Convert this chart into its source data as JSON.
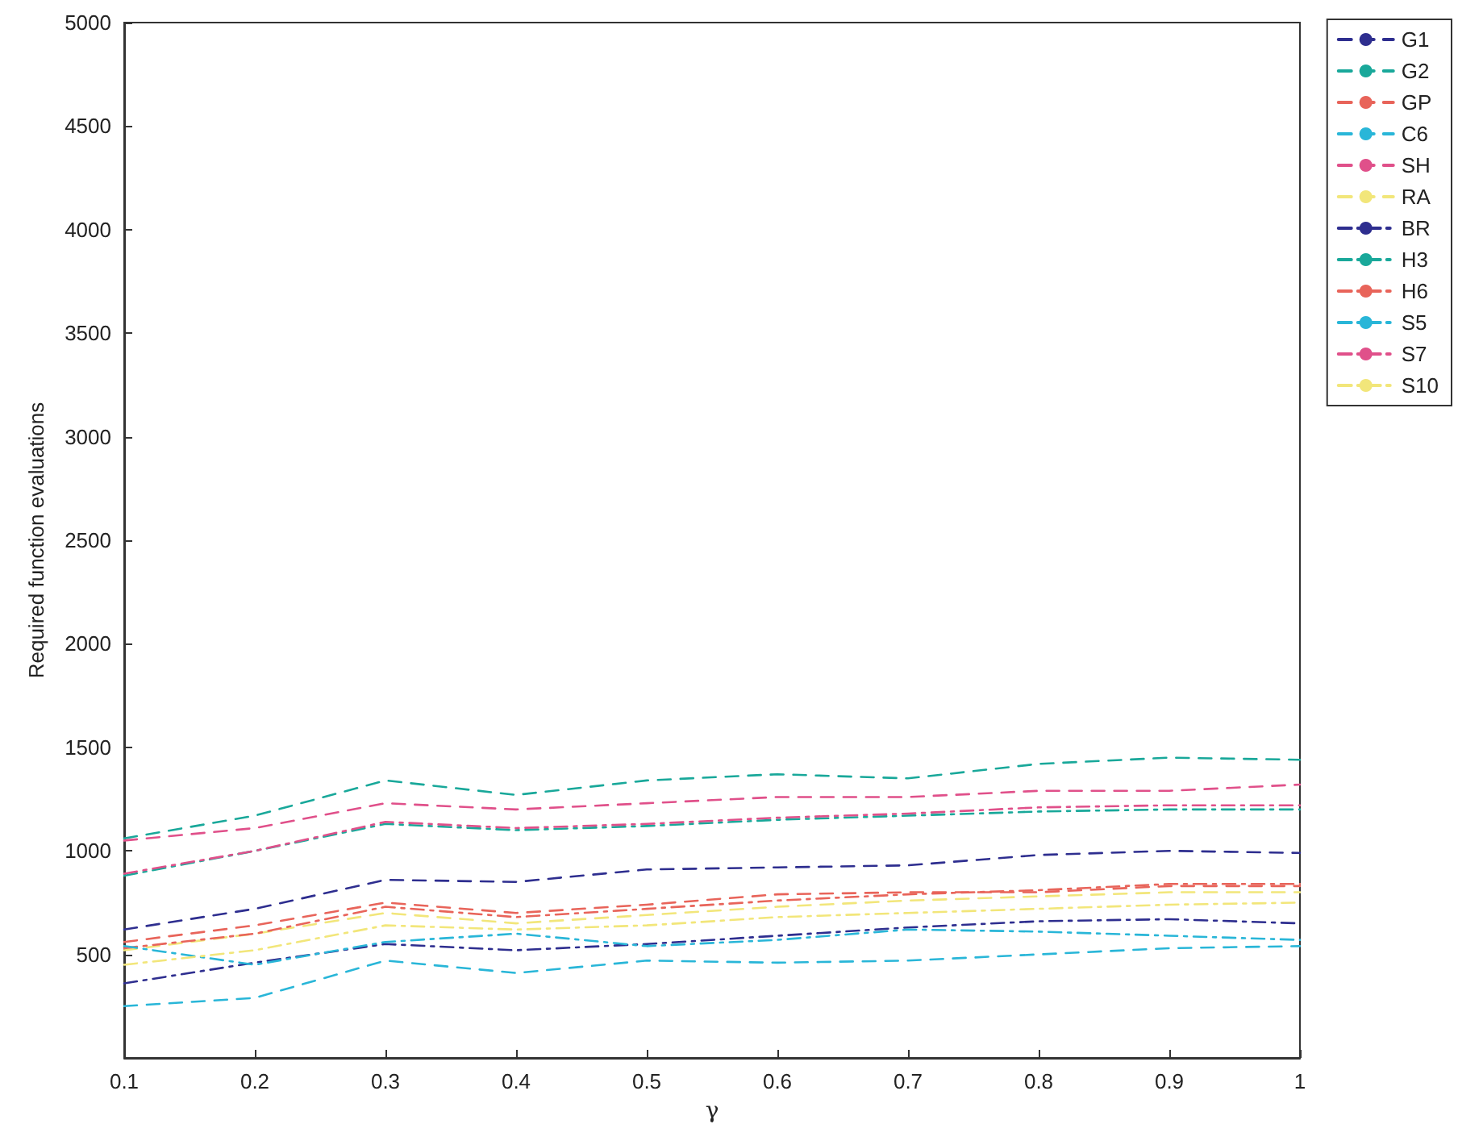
{
  "chart_data": {
    "type": "line",
    "xlabel": "γ",
    "ylabel": "Required function evaluations",
    "x": [
      0.1,
      0.2,
      0.3,
      0.4,
      0.5,
      0.6,
      0.7,
      0.8,
      0.9,
      1
    ],
    "xlim": [
      0.1,
      1
    ],
    "xticks": [
      0.1,
      0.2,
      0.3,
      0.4,
      0.5,
      0.6,
      0.7,
      0.8,
      0.9,
      1
    ],
    "ylim": [
      0,
      5000
    ],
    "yticks": [
      500,
      1000,
      1500,
      2000,
      2500,
      3000,
      3500,
      4000,
      4500,
      5000
    ],
    "grid": false,
    "legend": "top right",
    "marker": "none",
    "series": [
      {
        "name": "G1",
        "color": "#2e2e8f",
        "line_style": "dashed",
        "values": [
          620,
          720,
          860,
          850,
          910,
          920,
          930,
          980,
          1000,
          990
        ]
      },
      {
        "name": "G2",
        "color": "#19a89a",
        "line_style": "dashed",
        "values": [
          1060,
          1170,
          1340,
          1270,
          1340,
          1370,
          1350,
          1420,
          1450,
          1440
        ]
      },
      {
        "name": "GP",
        "color": "#e8645a",
        "line_style": "dashed",
        "values": [
          560,
          640,
          750,
          700,
          740,
          790,
          800,
          800,
          830,
          830
        ]
      },
      {
        "name": "C6",
        "color": "#29b6d8",
        "line_style": "dashed",
        "values": [
          250,
          290,
          470,
          410,
          470,
          460,
          470,
          500,
          530,
          540
        ]
      },
      {
        "name": "SH",
        "color": "#e0508a",
        "line_style": "dashed",
        "values": [
          1050,
          1110,
          1230,
          1200,
          1230,
          1260,
          1260,
          1290,
          1290,
          1320
        ]
      },
      {
        "name": "RA",
        "color": "#f2e67a",
        "line_style": "dashed",
        "values": [
          520,
          600,
          700,
          650,
          690,
          730,
          760,
          780,
          800,
          800
        ]
      },
      {
        "name": "BR",
        "color": "#2e2e8f",
        "line_style": "dashdot",
        "values": [
          360,
          460,
          550,
          520,
          550,
          590,
          630,
          660,
          670,
          650
        ]
      },
      {
        "name": "H3",
        "color": "#19a89a",
        "line_style": "dashdot",
        "values": [
          880,
          1000,
          1130,
          1100,
          1120,
          1150,
          1170,
          1190,
          1200,
          1200
        ]
      },
      {
        "name": "H6",
        "color": "#e8645a",
        "line_style": "dashdot",
        "values": [
          530,
          600,
          730,
          680,
          720,
          760,
          790,
          810,
          840,
          840
        ]
      },
      {
        "name": "S5",
        "color": "#29b6d8",
        "line_style": "dashdot",
        "values": [
          540,
          450,
          560,
          600,
          540,
          570,
          620,
          610,
          590,
          570
        ]
      },
      {
        "name": "S7",
        "color": "#e0508a",
        "line_style": "dashdot",
        "values": [
          890,
          1000,
          1140,
          1110,
          1130,
          1160,
          1180,
          1210,
          1220,
          1220
        ]
      },
      {
        "name": "S10",
        "color": "#f2e67a",
        "line_style": "dashdot",
        "values": [
          450,
          520,
          640,
          620,
          640,
          680,
          700,
          720,
          740,
          750
        ]
      }
    ]
  }
}
